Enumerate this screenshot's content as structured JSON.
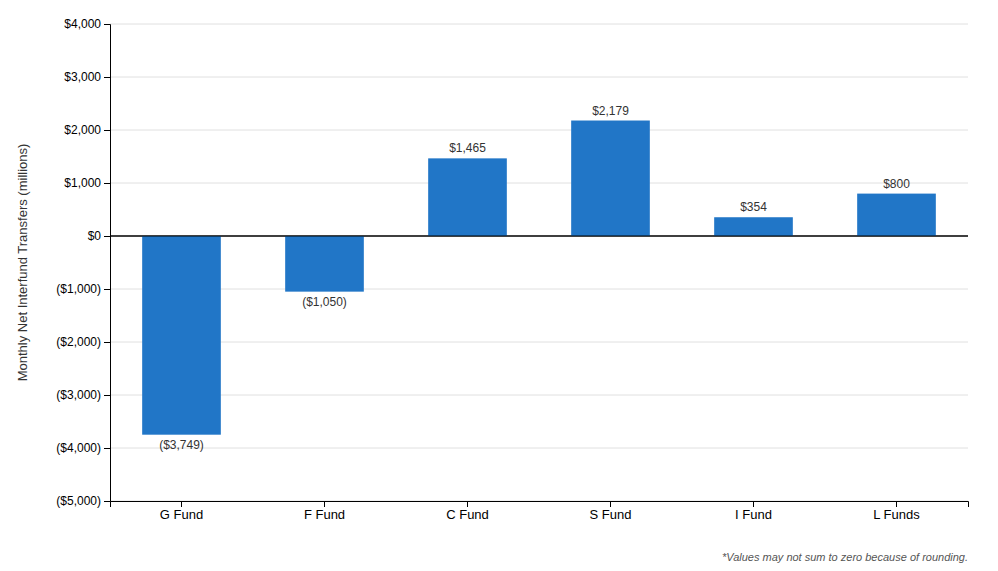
{
  "chart_data": {
    "type": "bar",
    "categories": [
      "G Fund",
      "F Fund",
      "C Fund",
      "S Fund",
      "I Fund",
      "L Funds"
    ],
    "values": [
      -3749,
      -1050,
      1465,
      2179,
      354,
      800
    ],
    "value_labels": [
      "($3,749)",
      "($1,050)",
      "$1,465",
      "$2,179",
      "$354",
      "$800"
    ],
    "data_labels": true,
    "color": "#2176c7",
    "ylabel": "Monthly Net Interfund Transfers (millions)",
    "ylim": [
      -5000,
      4000
    ],
    "yticks": [
      {
        "value": -5000,
        "label": "($5,000)"
      },
      {
        "value": -4000,
        "label": "($4,000)"
      },
      {
        "value": -3000,
        "label": "($3,000)"
      },
      {
        "value": -2000,
        "label": "($2,000)"
      },
      {
        "value": -1000,
        "label": "($1,000)"
      },
      {
        "value": 0,
        "label": "$0"
      },
      {
        "value": 1000,
        "label": "$1,000"
      },
      {
        "value": 2000,
        "label": "$2,000"
      },
      {
        "value": 3000,
        "label": "$3,000"
      },
      {
        "value": 4000,
        "label": "$4,000"
      }
    ],
    "grid": true,
    "annotations": [
      "*Values may not sum to zero because of rounding."
    ]
  }
}
